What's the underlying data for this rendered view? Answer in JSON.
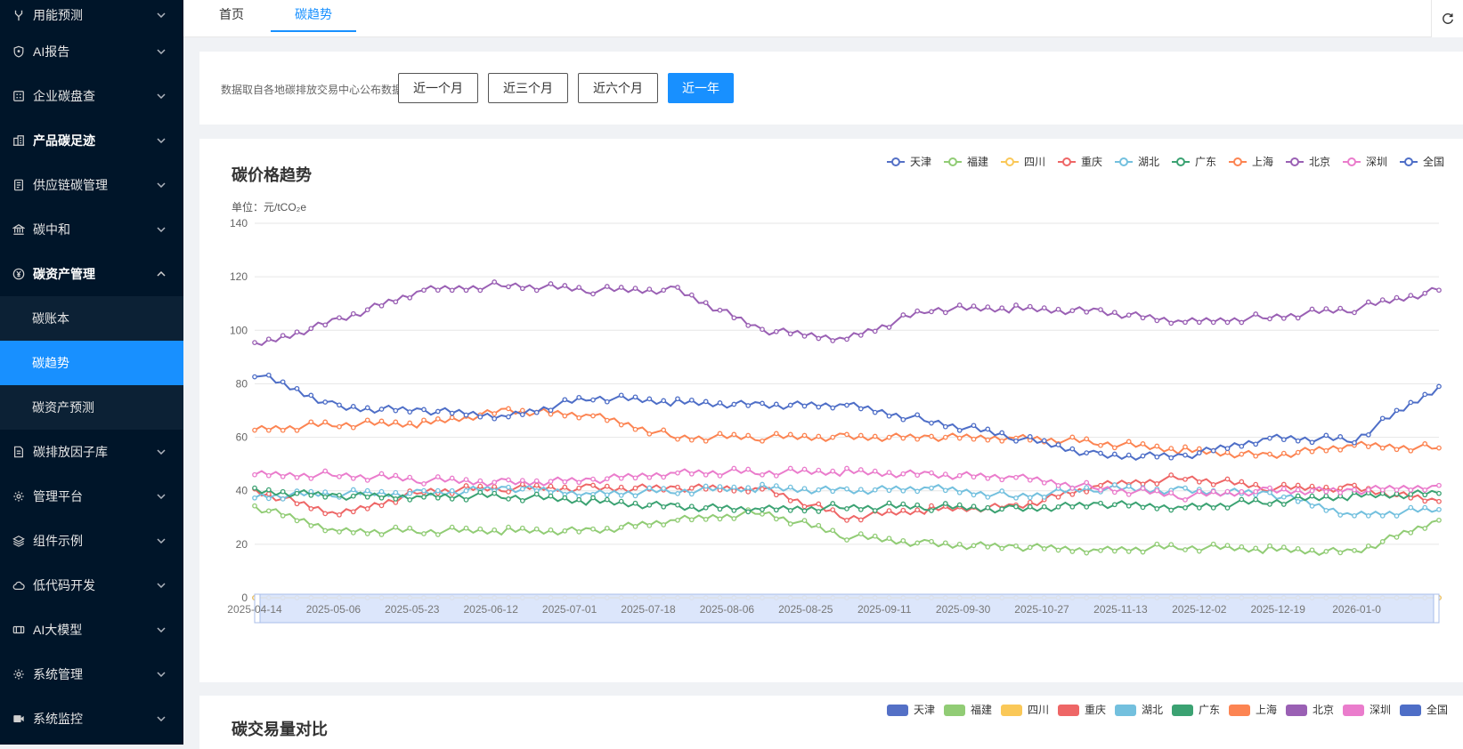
{
  "sidebar": {
    "items": [
      {
        "label": "用能预测",
        "icon": "fork-icon",
        "expanded": false
      },
      {
        "label": "AI报告",
        "icon": "shield-icon",
        "expanded": false
      },
      {
        "label": "企业碳盘查",
        "icon": "grid-icon",
        "expanded": false
      },
      {
        "label": "产品碳足迹",
        "icon": "building-icon",
        "expanded": false
      },
      {
        "label": "供应链碳管理",
        "icon": "report-icon",
        "expanded": false
      },
      {
        "label": "碳中和",
        "icon": "bank-icon",
        "expanded": false
      },
      {
        "label": "碳资产管理",
        "icon": "yen-circle-icon",
        "expanded": true
      },
      {
        "label": "碳账本",
        "sub": true
      },
      {
        "label": "碳趋势",
        "sub": true,
        "active": true
      },
      {
        "label": "碳资产预测",
        "sub": true
      },
      {
        "label": "碳排放因子库",
        "icon": "document-icon",
        "expanded": false
      },
      {
        "label": "管理平台",
        "icon": "gear-icon",
        "expanded": false
      },
      {
        "label": "组件示例",
        "icon": "layers-icon",
        "expanded": false
      },
      {
        "label": "低代码开发",
        "icon": "cloud-icon",
        "expanded": false
      },
      {
        "label": "AI大模型",
        "icon": "model-icon",
        "expanded": false
      },
      {
        "label": "系统管理",
        "icon": "gear-icon",
        "expanded": false
      },
      {
        "label": "系统监控",
        "icon": "video-icon",
        "expanded": false
      }
    ]
  },
  "tabs": [
    {
      "label": "首页",
      "active": false
    },
    {
      "label": "碳趋势",
      "active": true
    }
  ],
  "filter": {
    "note": "数据取自各地碳排放交易中心公布数据",
    "buttons": [
      {
        "label": "近一个月",
        "active": false
      },
      {
        "label": "近三个月",
        "active": false
      },
      {
        "label": "近六个月",
        "active": false
      },
      {
        "label": "近一年",
        "active": true
      }
    ]
  },
  "price_chart": {
    "title": "碳价格趋势",
    "unit": "单位：元/tCO₂e"
  },
  "volume_chart": {
    "title": "碳交易量对比"
  },
  "chart_data": [
    {
      "type": "line",
      "title": "碳价格趋势",
      "ylabel": "单位：元/tCO₂e",
      "ylim": [
        0,
        140
      ],
      "yticks": [
        0,
        20,
        40,
        60,
        80,
        100,
        120,
        140
      ],
      "xticks": [
        "2025-04-14",
        "2025-05-06",
        "2025-05-23",
        "2025-06-12",
        "2025-07-01",
        "2025-07-18",
        "2025-08-06",
        "2025-08-25",
        "2025-09-11",
        "2025-09-30",
        "2025-10-27",
        "2025-11-13",
        "2025-12-02",
        "2025-12-19",
        "2026-01-0"
      ],
      "legend_position": "top-right",
      "grid": true,
      "series": [
        {
          "name": "天津",
          "color": "#5470c6",
          "values": [
            0,
            0,
            0,
            0,
            0,
            0,
            0,
            0,
            0,
            0,
            0,
            0,
            0,
            0,
            0
          ]
        },
        {
          "name": "福建",
          "color": "#91cc75",
          "values": [
            34,
            25,
            25,
            25,
            25,
            29,
            32,
            23,
            20,
            19,
            18,
            19,
            18,
            17,
            29
          ]
        },
        {
          "name": "四川",
          "color": "#fac858",
          "values": [
            0,
            0,
            0,
            0,
            0,
            0,
            0,
            0,
            0,
            0,
            0,
            0,
            0,
            0,
            0
          ]
        },
        {
          "name": "重庆",
          "color": "#ee6666",
          "values": [
            40,
            31,
            40,
            41,
            41,
            41,
            41,
            30,
            33,
            34,
            42,
            45,
            41,
            41,
            36
          ]
        },
        {
          "name": "湖北",
          "color": "#73c0de",
          "values": [
            38,
            39,
            39,
            41,
            39,
            40,
            41,
            40,
            41,
            38,
            41,
            40,
            39,
            31,
            33
          ]
        },
        {
          "name": "广东",
          "color": "#3ba272",
          "values": [
            40,
            38,
            38,
            38,
            36,
            34,
            33,
            34,
            34,
            33,
            35,
            34,
            36,
            38,
            39
          ]
        },
        {
          "name": "上海",
          "color": "#fc8452",
          "values": [
            63,
            65,
            65,
            70,
            68,
            60,
            60,
            60,
            60,
            60,
            58,
            55,
            53,
            57,
            56
          ]
        },
        {
          "name": "北京",
          "color": "#9a60b4",
          "values": [
            94,
            104,
            115,
            117,
            115,
            115,
            100,
            97,
            108,
            108,
            107,
            103,
            105,
            108,
            115
          ]
        },
        {
          "name": "深圳",
          "color": "#ea7ccc",
          "values": [
            46,
            46,
            44,
            43,
            44,
            47,
            47,
            47,
            46,
            45,
            41,
            38,
            40,
            40,
            42
          ]
        },
        {
          "name": "全国",
          "color": "#4e6ec7",
          "values": [
            84,
            71,
            70,
            68,
            75,
            73,
            72,
            72,
            66,
            60,
            53,
            53,
            60,
            59,
            79
          ]
        }
      ]
    },
    {
      "type": "bar",
      "title": "碳交易量对比",
      "legend_position": "top-right",
      "series": [
        {
          "name": "天津",
          "color": "#5470c6"
        },
        {
          "name": "福建",
          "color": "#91cc75"
        },
        {
          "name": "四川",
          "color": "#fac858"
        },
        {
          "name": "重庆",
          "color": "#ee6666"
        },
        {
          "name": "湖北",
          "color": "#73c0de"
        },
        {
          "name": "广东",
          "color": "#3ba272"
        },
        {
          "name": "上海",
          "color": "#fc8452"
        },
        {
          "name": "北京",
          "color": "#9a60b4"
        },
        {
          "name": "深圳",
          "color": "#ea7ccc"
        },
        {
          "name": "全国",
          "color": "#4e6ec7"
        }
      ]
    }
  ]
}
